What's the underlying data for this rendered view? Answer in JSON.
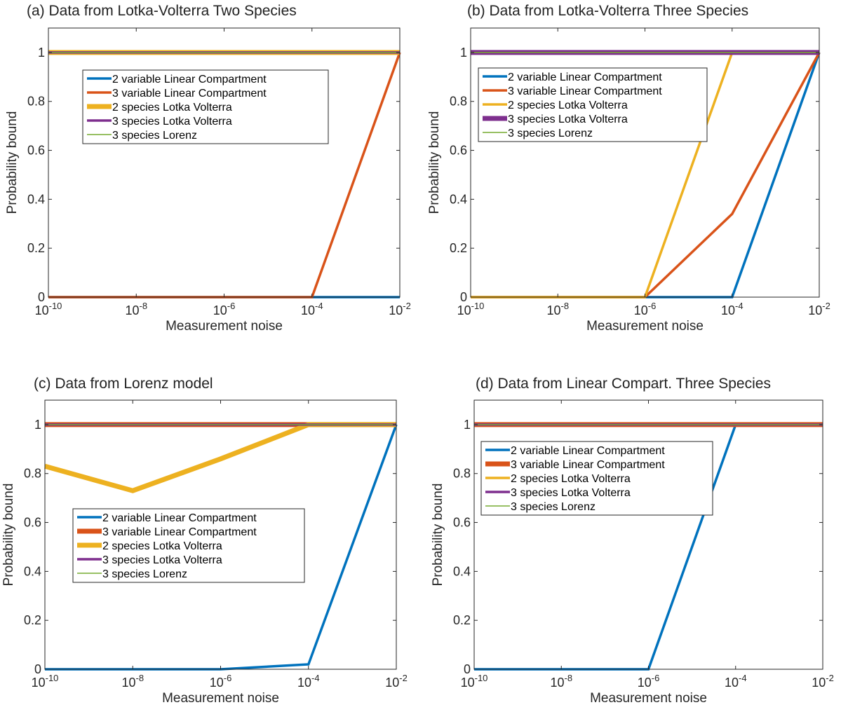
{
  "legend_labels": [
    "2 variable Linear Compartment",
    "3 variable Linear Compartment",
    "2 species Lotka Volterra",
    "3 species Lotka Volterra",
    "3 species Lorenz"
  ],
  "chart_data": [
    {
      "type": "line",
      "title": "(a)  Data from Lotka-Volterra Two Species",
      "xlabel": "Measurement noise",
      "ylabel": "Probability bound",
      "xscale": "log",
      "xlim": [
        1e-10,
        0.01
      ],
      "ylim": [
        0,
        1.1
      ],
      "x_ticks": [
        {
          "mant": "10",
          "exp": "-10"
        },
        {
          "mant": "10",
          "exp": "-8"
        },
        {
          "mant": "10",
          "exp": "-6"
        },
        {
          "mant": "10",
          "exp": "-4"
        },
        {
          "mant": "10",
          "exp": "-2"
        }
      ],
      "y_ticks": [
        "0",
        "0.2",
        "0.4",
        "0.6",
        "0.8",
        "1"
      ],
      "legend_position": "upper-left",
      "x": [
        1e-10,
        1e-08,
        1e-06,
        0.0001,
        0.01
      ],
      "series": [
        {
          "name": "2 variable Linear Compartment",
          "values": [
            0,
            0,
            0,
            0,
            0
          ],
          "color": "#0072BD",
          "width": 3.5
        },
        {
          "name": "3 variable Linear Compartment",
          "values": [
            0,
            0,
            0,
            0,
            1
          ],
          "color": "#D95319",
          "width": 3.5
        },
        {
          "name": "2 species Lotka Volterra",
          "values": [
            1,
            1,
            1,
            1,
            1
          ],
          "color": "#EDB120",
          "width": 7
        },
        {
          "name": "3 species Lotka Volterra",
          "values": [
            1,
            1,
            1,
            1,
            1
          ],
          "color": "#7E2F8E",
          "width": 3.5
        },
        {
          "name": "3 species Lorenz",
          "values": [
            1,
            1,
            1,
            1,
            1
          ],
          "color": "#77AC30",
          "width": 1.5
        }
      ]
    },
    {
      "type": "line",
      "title": "(b)  Data from Lotka-Volterra Three Species",
      "xlabel": "Measurement noise",
      "ylabel": "Probability bound",
      "xscale": "log",
      "xlim": [
        1e-10,
        0.01
      ],
      "ylim": [
        0,
        1.1
      ],
      "x_ticks": [
        {
          "mant": "10",
          "exp": "-10"
        },
        {
          "mant": "10",
          "exp": "-8"
        },
        {
          "mant": "10",
          "exp": "-6"
        },
        {
          "mant": "10",
          "exp": "-4"
        },
        {
          "mant": "10",
          "exp": "-2"
        }
      ],
      "y_ticks": [
        "0",
        "0.2",
        "0.4",
        "0.6",
        "0.8",
        "1"
      ],
      "legend_position": "upper-left",
      "x": [
        1e-10,
        1e-08,
        1e-06,
        0.0001,
        0.01
      ],
      "series": [
        {
          "name": "2 variable Linear Compartment",
          "values": [
            0,
            0,
            0,
            0,
            1
          ],
          "color": "#0072BD",
          "width": 3.5
        },
        {
          "name": "3 variable Linear Compartment",
          "values": [
            0,
            0,
            0,
            0.34,
            1
          ],
          "color": "#D95319",
          "width": 3.5
        },
        {
          "name": "2 species Lotka Volterra",
          "values": [
            0,
            0,
            0,
            1,
            1
          ],
          "color": "#EDB120",
          "width": 3.5
        },
        {
          "name": "3 species Lotka Volterra",
          "values": [
            1,
            1,
            1,
            1,
            1
          ],
          "color": "#7E2F8E",
          "width": 7
        },
        {
          "name": "3 species Lorenz",
          "values": [
            1,
            1,
            1,
            1,
            1
          ],
          "color": "#77AC30",
          "width": 1.5
        }
      ]
    },
    {
      "type": "line",
      "title": "(c)  Data from Lorenz model",
      "xlabel": "Measurement noise",
      "ylabel": "Probability bound",
      "xscale": "log",
      "xlim": [
        1e-10,
        0.01
      ],
      "ylim": [
        0,
        1.1
      ],
      "x_ticks": [
        {
          "mant": "10",
          "exp": "-10"
        },
        {
          "mant": "10",
          "exp": "-8"
        },
        {
          "mant": "10",
          "exp": "-6"
        },
        {
          "mant": "10",
          "exp": "-4"
        },
        {
          "mant": "10",
          "exp": "-2"
        }
      ],
      "y_ticks": [
        "0",
        "0.2",
        "0.4",
        "0.6",
        "0.8",
        "1"
      ],
      "legend_position": "lower-left",
      "x": [
        1e-10,
        1e-08,
        1e-06,
        0.0001,
        0.01
      ],
      "series": [
        {
          "name": "2 variable Linear Compartment",
          "values": [
            0,
            0,
            0,
            0.02,
            1
          ],
          "color": "#0072BD",
          "width": 3.5
        },
        {
          "name": "3 variable Linear Compartment",
          "values": [
            1,
            1,
            1,
            1,
            1
          ],
          "color": "#D95319",
          "width": 7
        },
        {
          "name": "2 species Lotka Volterra",
          "values": [
            0.83,
            0.73,
            0.86,
            1,
            1
          ],
          "color": "#EDB120",
          "width": 7
        },
        {
          "name": "3 species Lotka Volterra",
          "values": [
            1,
            1,
            1,
            1,
            1
          ],
          "color": "#7E2F8E",
          "width": 3.5
        },
        {
          "name": "3 species Lorenz",
          "values": [
            1,
            1,
            1,
            1,
            1
          ],
          "color": "#77AC30",
          "width": 1.5
        }
      ]
    },
    {
      "type": "line",
      "title": "(d)  Data from Linear Compart. Three Species",
      "xlabel": "Measurement noise",
      "ylabel": "Probability bound",
      "xscale": "log",
      "xlim": [
        1e-10,
        0.01
      ],
      "ylim": [
        0,
        1.1
      ],
      "x_ticks": [
        {
          "mant": "10",
          "exp": "-10"
        },
        {
          "mant": "10",
          "exp": "-8"
        },
        {
          "mant": "10",
          "exp": "-6"
        },
        {
          "mant": "10",
          "exp": "-4"
        },
        {
          "mant": "10",
          "exp": "-2"
        }
      ],
      "y_ticks": [
        "0",
        "0.2",
        "0.4",
        "0.6",
        "0.8",
        "1"
      ],
      "legend_position": "upper-left",
      "x": [
        1e-10,
        1e-08,
        1e-06,
        0.0001,
        0.01
      ],
      "series": [
        {
          "name": "2 variable Linear Compartment",
          "values": [
            0,
            0,
            0,
            1,
            1
          ],
          "color": "#0072BD",
          "width": 3.5
        },
        {
          "name": "3 variable Linear Compartment",
          "values": [
            1,
            1,
            1,
            1,
            1
          ],
          "color": "#D95319",
          "width": 7
        },
        {
          "name": "2 species Lotka Volterra",
          "values": [
            1,
            1,
            1,
            1,
            1
          ],
          "color": "#EDB120",
          "width": 3.5
        },
        {
          "name": "3 species Lotka Volterra",
          "values": [
            1,
            1,
            1,
            1,
            1
          ],
          "color": "#7E2F8E",
          "width": 3.5
        },
        {
          "name": "3 species Lorenz",
          "values": [
            1,
            1,
            1,
            1,
            1
          ],
          "color": "#77AC30",
          "width": 1.5
        }
      ]
    }
  ]
}
